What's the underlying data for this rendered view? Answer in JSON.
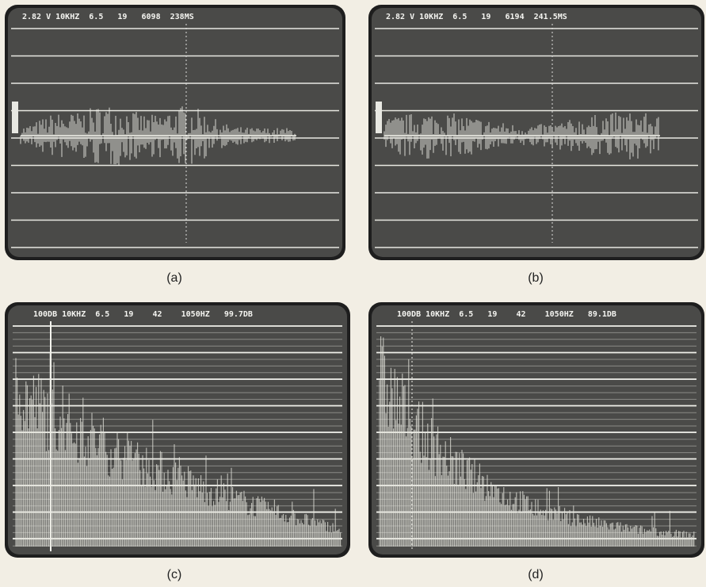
{
  "panels": [
    {
      "header": "2.82 V 10KHZ  6.5   19   6098  238MS",
      "caption": "(a)"
    },
    {
      "header": "2.82 V 10KHZ  6.5   19   6194  241.5MS",
      "caption": "(b)"
    },
    {
      "header": "100DB 10KHZ  6.5   19    42    1050HZ   99.7DB",
      "caption": "(c)"
    },
    {
      "header": "100DB 10KHZ  6.5   19    42    1050HZ   89.1DB",
      "caption": "(d)"
    }
  ]
}
